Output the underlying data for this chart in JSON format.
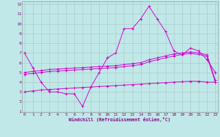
{
  "title": "",
  "xlabel": "Windchill (Refroidissement éolien,°C)",
  "background_color": "#c0e8e8",
  "grid_color": "#b0c8c8",
  "line_color": "#cc00cc",
  "xmin": 0,
  "xmax": 23,
  "ymin": 1,
  "ymax": 12,
  "x_ticks": [
    0,
    1,
    2,
    3,
    4,
    5,
    6,
    7,
    8,
    9,
    10,
    11,
    12,
    13,
    14,
    15,
    16,
    17,
    18,
    19,
    20,
    21,
    22,
    23
  ],
  "y_ticks": [
    1,
    2,
    3,
    4,
    5,
    6,
    7,
    8,
    9,
    10,
    11,
    12
  ],
  "series": [
    {
      "x": [
        0,
        1,
        2,
        3,
        4,
        5,
        6,
        7,
        8,
        9,
        10,
        11,
        12,
        13,
        14,
        15,
        16,
        17,
        18,
        19,
        20,
        21,
        22,
        23
      ],
      "y": [
        7.0,
        5.5,
        4.0,
        3.0,
        3.0,
        2.8,
        2.8,
        1.5,
        3.5,
        5.0,
        6.5,
        7.0,
        9.5,
        9.5,
        10.5,
        11.8,
        10.5,
        9.2,
        7.2,
        6.8,
        7.5,
        7.2,
        6.3,
        5.0
      ]
    },
    {
      "x": [
        0,
        1,
        2,
        3,
        4,
        5,
        6,
        7,
        8,
        9,
        10,
        11,
        12,
        13,
        14,
        15,
        16,
        17,
        18,
        19,
        20,
        21,
        22,
        23
      ],
      "y": [
        5.0,
        5.1,
        5.2,
        5.3,
        5.35,
        5.4,
        5.45,
        5.5,
        5.55,
        5.6,
        5.65,
        5.7,
        5.8,
        5.9,
        6.0,
        6.3,
        6.5,
        6.7,
        6.9,
        7.0,
        7.1,
        7.0,
        6.8,
        4.2
      ]
    },
    {
      "x": [
        0,
        1,
        2,
        3,
        4,
        5,
        6,
        7,
        8,
        9,
        10,
        11,
        12,
        13,
        14,
        15,
        16,
        17,
        18,
        19,
        20,
        21,
        22,
        23
      ],
      "y": [
        4.8,
        4.9,
        5.0,
        5.1,
        5.15,
        5.2,
        5.25,
        5.3,
        5.35,
        5.4,
        5.45,
        5.5,
        5.6,
        5.7,
        5.8,
        6.1,
        6.3,
        6.5,
        6.7,
        6.85,
        6.95,
        6.85,
        6.65,
        4.0
      ]
    },
    {
      "x": [
        0,
        1,
        2,
        3,
        4,
        5,
        6,
        7,
        8,
        9,
        10,
        11,
        12,
        13,
        14,
        15,
        16,
        17,
        18,
        19,
        20,
        21,
        22,
        23
      ],
      "y": [
        3.0,
        3.1,
        3.2,
        3.25,
        3.3,
        3.35,
        3.4,
        3.45,
        3.5,
        3.55,
        3.6,
        3.65,
        3.7,
        3.75,
        3.8,
        3.85,
        3.9,
        3.95,
        4.0,
        4.05,
        4.1,
        4.1,
        4.0,
        4.0
      ]
    }
  ]
}
